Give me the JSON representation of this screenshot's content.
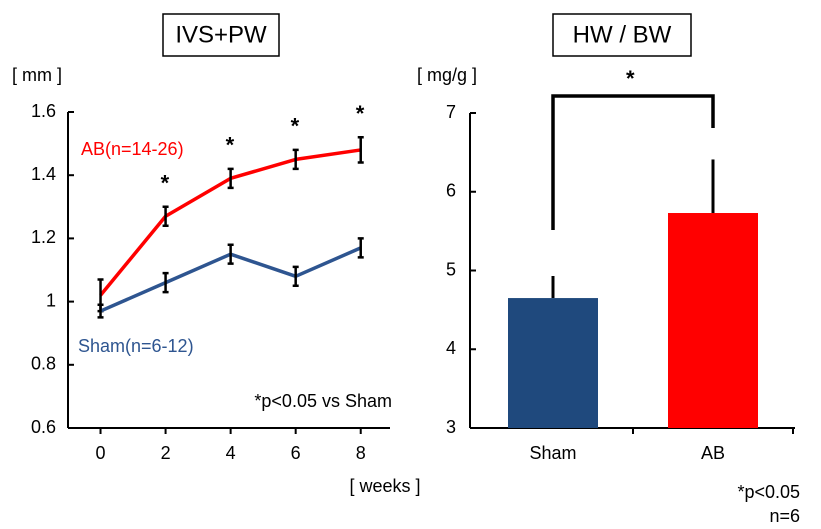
{
  "chart_data": [
    {
      "type": "line",
      "title": "IVS+PW",
      "y_label": "[ mm ]",
      "x_label": "[ weeks ]",
      "x": [
        0,
        2,
        4,
        6,
        8
      ],
      "series": [
        {
          "name": "AB(n=14-26)",
          "color": "#ff0000",
          "values": [
            1.02,
            1.27,
            1.39,
            1.45,
            1.48
          ],
          "errors": [
            0.05,
            0.03,
            0.03,
            0.03,
            0.04
          ]
        },
        {
          "name": "Sham(n=6-12)",
          "color": "#2e5590",
          "values": [
            0.97,
            1.06,
            1.15,
            1.08,
            1.17
          ],
          "errors": [
            0.02,
            0.03,
            0.03,
            0.03,
            0.03
          ]
        }
      ],
      "significance": [
        null,
        "*",
        "*",
        "*",
        "*"
      ],
      "annotation": "*p<0.05 vs Sham",
      "xlim": [
        -1,
        8.9
      ],
      "xticks": [
        0,
        2,
        4,
        6,
        8
      ],
      "ylim": [
        0.6,
        1.6
      ],
      "yticks": [
        0.6,
        0.8,
        1,
        1.2,
        1.4,
        1.6
      ]
    },
    {
      "type": "bar",
      "title": "HW / BW",
      "y_label": "[ mg/g ]",
      "categories": [
        "Sham",
        "AB"
      ],
      "values": [
        4.65,
        5.73
      ],
      "errors": [
        0.28,
        0.68
      ],
      "colors": [
        "#1f497d",
        "#ff0000"
      ],
      "bracket_label": "*",
      "footnote": [
        "*p<0.05",
        "n=6"
      ],
      "ylim": [
        3,
        7
      ],
      "yticks": [
        3,
        4,
        5,
        6,
        7
      ]
    }
  ]
}
